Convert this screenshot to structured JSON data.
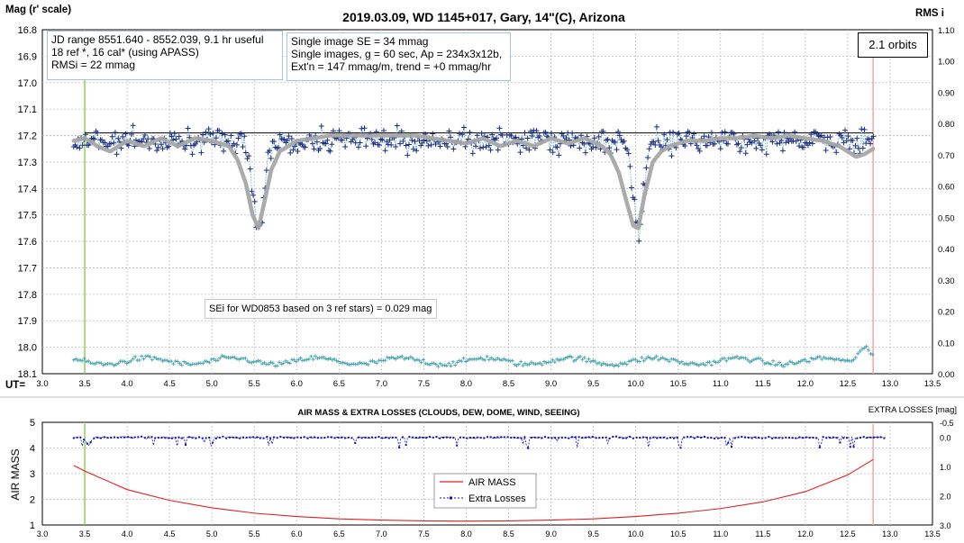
{
  "top": {
    "title": "2019.03.09, WD 1145+017, Gary, 14\"(C), Arizona",
    "left_axis_label": "Mag (r' scale)",
    "right_axis_label": "RMS i",
    "x_axis_label": "UT=",
    "info_left": [
      "JD range 8551.640 - 8552.039, 9.1 hr useful",
      "18 ref *, 16 cal* (using APASS)",
      "RMSi = 22 mmag"
    ],
    "info_mid": [
      "Single image SE = 34 mmag",
      "Single images, g = 60 sec, Ap = 234x3x12b,",
      "Ext'n = 147 mmag/m, trend = +0 mmag/hr"
    ],
    "orbits": "2.1 orbits",
    "sei_note": "SEi for WD0853 based on 3 ref stars) = 0.029 mag"
  },
  "bottom": {
    "title": "AIR MASS & EXTRA LOSSES (CLOUDS, DEW, DOME, WIND, SEEING)",
    "left_axis_label": "AIR MASS",
    "right_axis_label": "EXTRA LOSSES [mag]",
    "legend": [
      "AIR MASS",
      "Extra Losses"
    ]
  },
  "colors": {
    "data_points": "#1a2f7f",
    "data_line": "#5aa3d8",
    "model_curve": "#a6a6a6",
    "baseline": "#000000",
    "rms_series": "#4aa6b0",
    "start_marker": "#92d050",
    "end_marker": "#f4a6a6",
    "air_mass": "#e02020",
    "extra_losses": "#1010c0"
  },
  "chart_data": [
    {
      "type": "scatter",
      "title": "2019.03.09, WD 1145+017, Gary, 14\"(C), Arizona",
      "xlabel": "UT=",
      "ylabel": "Mag (r' scale)",
      "y2label": "RMS i",
      "xlim": [
        3.0,
        13.5
      ],
      "ylim": [
        18.1,
        16.8
      ],
      "y2lim": [
        0.0,
        1.1
      ],
      "x_ticks": [
        "3.0",
        "3.5",
        "4.0",
        "4.5",
        "5.0",
        "5.5",
        "6.0",
        "6.5",
        "7.0",
        "7.5",
        "8.0",
        "8.5",
        "9.0",
        "9.5",
        "10.0",
        "10.5",
        "11.0",
        "11.5",
        "12.0",
        "12.5",
        "13.0",
        "13.5"
      ],
      "y_ticks": [
        "16.8",
        "16.9",
        "17.0",
        "17.1",
        "17.2",
        "17.3",
        "17.4",
        "17.5",
        "17.6",
        "17.7",
        "17.8",
        "17.9",
        "18.0",
        "18.1"
      ],
      "y2_ticks": [
        "0.00",
        "0.10",
        "0.20",
        "0.30",
        "0.40",
        "0.50",
        "0.60",
        "0.70",
        "0.80",
        "0.90",
        "1.00",
        "1.10"
      ],
      "baseline_mag": 17.19,
      "markers": {
        "start_ut": 3.5,
        "end_ut": 12.8
      },
      "series": [
        {
          "name": "Mag",
          "kind": "scatter",
          "x_range": [
            3.37,
            12.82
          ],
          "baseline": 17.22,
          "scatter": 0.04,
          "dips": [
            {
              "center_ut": 5.55,
              "depth": 0.35,
              "width": 0.09
            },
            {
              "center_ut": 10.03,
              "depth": 0.34,
              "width": 0.09
            }
          ]
        },
        {
          "name": "Model",
          "kind": "line",
          "x": [
            3.37,
            3.5,
            3.65,
            3.8,
            4.0,
            4.2,
            4.4,
            4.6,
            4.8,
            5.0,
            5.2,
            5.3,
            5.4,
            5.48,
            5.55,
            5.62,
            5.7,
            5.8,
            5.9,
            6.0,
            6.2,
            6.4,
            6.6,
            6.8,
            7.0,
            7.2,
            7.4,
            7.6,
            7.8,
            8.0,
            8.2,
            8.4,
            8.6,
            8.8,
            9.0,
            9.2,
            9.4,
            9.6,
            9.7,
            9.8,
            9.9,
            9.97,
            10.03,
            10.1,
            10.2,
            10.3,
            10.4,
            10.6,
            10.8,
            11.0,
            11.2,
            11.4,
            11.6,
            11.8,
            12.0,
            12.2,
            12.4,
            12.5,
            12.6,
            12.7,
            12.8
          ],
          "y": [
            17.22,
            17.21,
            17.24,
            17.26,
            17.22,
            17.24,
            17.21,
            17.24,
            17.21,
            17.22,
            17.24,
            17.29,
            17.38,
            17.5,
            17.55,
            17.45,
            17.33,
            17.26,
            17.24,
            17.22,
            17.21,
            17.2,
            17.2,
            17.2,
            17.2,
            17.2,
            17.2,
            17.21,
            17.22,
            17.23,
            17.21,
            17.24,
            17.22,
            17.24,
            17.21,
            17.23,
            17.21,
            17.24,
            17.27,
            17.34,
            17.46,
            17.54,
            17.55,
            17.43,
            17.3,
            17.26,
            17.24,
            17.22,
            17.22,
            17.21,
            17.21,
            17.2,
            17.21,
            17.2,
            17.21,
            17.22,
            17.24,
            17.26,
            17.28,
            17.27,
            17.25
          ]
        },
        {
          "name": "RMS i",
          "kind": "scatter",
          "axis": "right",
          "x_range": [
            3.37,
            12.82
          ],
          "typical": 0.04,
          "peak": 0.09,
          "peak_ut": 12.7
        }
      ]
    },
    {
      "type": "line",
      "title": "AIR MASS & EXTRA LOSSES (CLOUDS, DEW, DOME, WIND, SEEING)",
      "ylabel": "AIR MASS",
      "y2label": "EXTRA LOSSES [mag]",
      "xlim": [
        3.0,
        13.5
      ],
      "ylim": [
        1,
        5
      ],
      "y2lim": [
        3.0,
        -0.5
      ],
      "x_ticks": [
        "3.0",
        "3.5",
        "4.0",
        "4.5",
        "5.0",
        "5.5",
        "6.0",
        "6.5",
        "7.0",
        "7.5",
        "8.0",
        "8.5",
        "9.0",
        "9.5",
        "10.0",
        "10.5",
        "11.0",
        "11.5",
        "12.0",
        "12.5",
        "13.0",
        "13.5"
      ],
      "y_ticks": [
        "1",
        "2",
        "3",
        "4",
        "5"
      ],
      "y2_ticks": [
        "3.0",
        "2.0",
        "1.0",
        "0.0",
        "-0.5"
      ],
      "series": [
        {
          "name": "AIR MASS",
          "x": [
            3.37,
            3.5,
            4.0,
            4.5,
            5.0,
            5.5,
            6.0,
            6.5,
            7.0,
            7.5,
            8.0,
            8.5,
            9.0,
            9.5,
            10.0,
            10.5,
            11.0,
            11.5,
            12.0,
            12.5,
            12.8
          ],
          "y": [
            3.32,
            3.1,
            2.38,
            1.96,
            1.67,
            1.46,
            1.33,
            1.24,
            1.19,
            1.16,
            1.15,
            1.16,
            1.19,
            1.24,
            1.33,
            1.46,
            1.64,
            1.9,
            2.3,
            2.95,
            3.55
          ]
        },
        {
          "name": "Extra Losses",
          "x_range": [
            3.37,
            12.95
          ],
          "typical": 0.02
        }
      ]
    }
  ]
}
